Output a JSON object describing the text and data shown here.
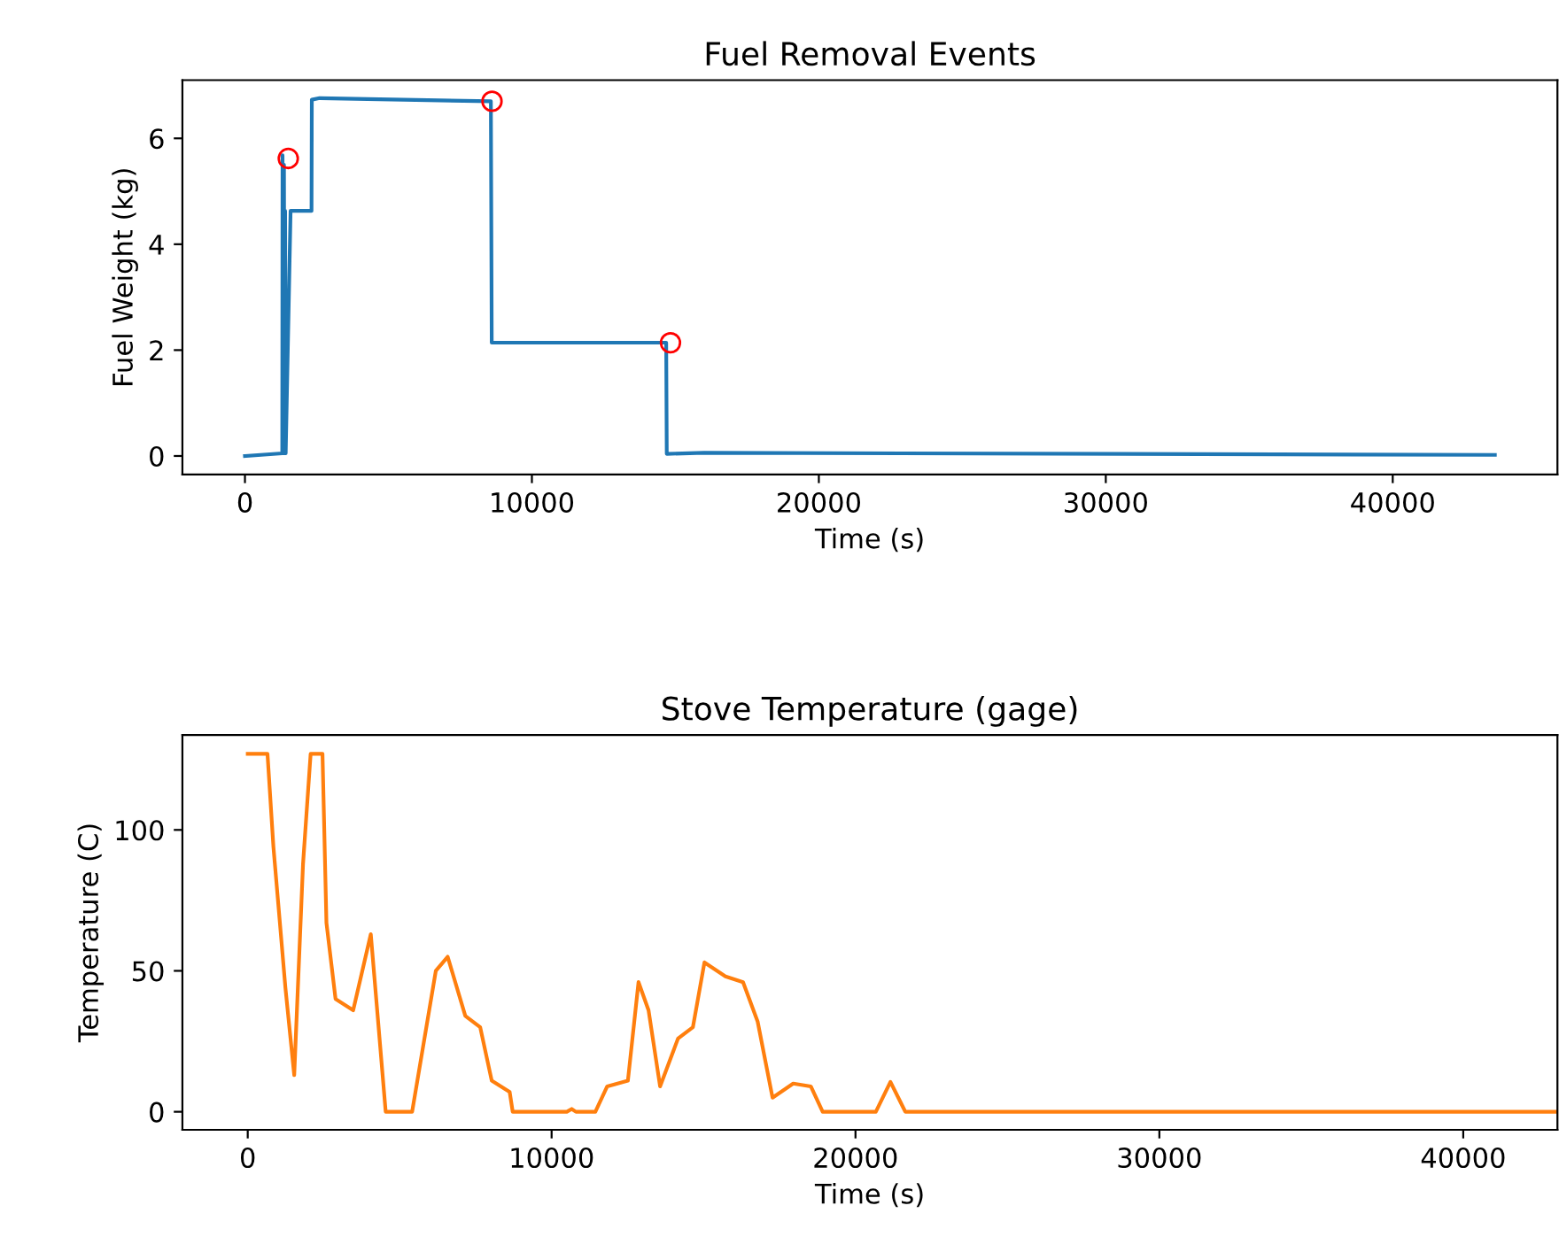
{
  "chart_data": [
    {
      "type": "line",
      "title": "Fuel Removal Events",
      "xlabel": "Time (s)",
      "ylabel": "Fuel Weight (kg)",
      "xlim": [
        -2180,
        45740
      ],
      "ylim": [
        -0.35,
        7.1
      ],
      "xticks": [
        0,
        10000,
        20000,
        30000,
        40000
      ],
      "yticks": [
        0,
        2,
        4,
        6
      ],
      "grid": false,
      "series": [
        {
          "color": "#1f77b4",
          "marker": "none",
          "x": [
            0,
            1300,
            1310,
            1340,
            1360,
            1380,
            1400,
            1420,
            1590,
            2320,
            2330,
            2600,
            8570,
            8600,
            14680,
            14700,
            16000,
            43560
          ],
          "values": [
            0,
            0.05,
            5.68,
            0.05,
            5.5,
            0.05,
            4.63,
            0.05,
            4.63,
            4.63,
            6.73,
            6.76,
            6.7,
            2.14,
            2.14,
            0.04,
            0.06,
            0.02
          ]
        },
        {
          "type": "scatter",
          "color": "#ff0000",
          "marker": "circle",
          "x": [
            1510,
            8610,
            14830
          ],
          "values": [
            5.62,
            6.7,
            2.14
          ]
        }
      ]
    },
    {
      "type": "line",
      "title": "Stove Temperature (gage)",
      "xlabel": "Time (s)",
      "ylabel": "Temperature (C)",
      "xlim": [
        -2150,
        43100
      ],
      "ylim": [
        -6.4,
        133.7
      ],
      "xticks": [
        0,
        10000,
        20000,
        30000,
        40000
      ],
      "yticks": [
        0,
        50,
        100
      ],
      "grid": false,
      "series": [
        {
          "color": "#ff7f0e",
          "marker": "none",
          "x": [
            0,
            650,
            845,
            1240,
            1530,
            1820,
            2070,
            2460,
            2590,
            2890,
            3470,
            4050,
            4540,
            5410,
            6190,
            6580,
            7160,
            7650,
            8030,
            8620,
            8720,
            10500,
            10660,
            10800,
            11440,
            11830,
            12510,
            12860,
            13190,
            13570,
            14160,
            14650,
            15030,
            15720,
            16300,
            16780,
            17270,
            17950,
            18530,
            18920,
            20670,
            21150,
            21640,
            43100
          ],
          "values": [
            127,
            127,
            94,
            44,
            13,
            88,
            127,
            127,
            67,
            40,
            36,
            63,
            0,
            0,
            50,
            55,
            34,
            30,
            11,
            7,
            0,
            0,
            1,
            0,
            0,
            9,
            11,
            46,
            36,
            9,
            26,
            30,
            53,
            48,
            46,
            32,
            5,
            10,
            9,
            0,
            0,
            10.6,
            0,
            0
          ]
        }
      ]
    }
  ]
}
